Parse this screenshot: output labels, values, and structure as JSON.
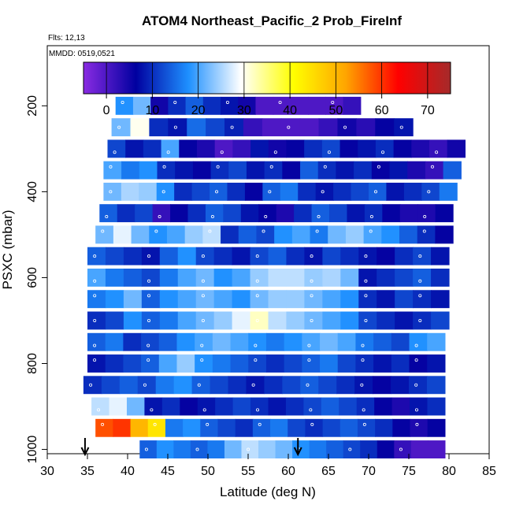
{
  "chart_data": {
    "type": "heatmap",
    "title": "ATOM4 Northeast_Pacific_2 Prob_FireInf",
    "flights_label": "Flts: 12,13",
    "dates_label": "MMDD: 0519,0521",
    "xlabel": "Latitude (deg N)",
    "ylabel": "PSXC (mbar)",
    "xlim": [
      30,
      85
    ],
    "ylim": [
      1010,
      60
    ],
    "y_reversed": true,
    "grid": false,
    "x_ticks": [
      "30",
      "35",
      "40",
      "45",
      "50",
      "55",
      "60",
      "65",
      "70",
      "75",
      "80",
      "85"
    ],
    "y_ticks": [
      "200",
      "400",
      "600",
      "800",
      "1000"
    ],
    "colorbar": {
      "range": [
        -5,
        75
      ],
      "ticks": [
        "0",
        "10",
        "20",
        "30",
        "40",
        "50",
        "60",
        "70"
      ],
      "colors": [
        "#8a2be2",
        "#0000a0",
        "#1e90ff",
        "#ffffff",
        "#ffff00",
        "#ffa500",
        "#ff0000",
        "#a52a2a"
      ]
    },
    "arrows_at_latitude": [
      34.7,
      61.2
    ],
    "layers": [
      {
        "p": 200,
        "lat": [
          38.5,
          69.0
        ],
        "values": [
          18,
          22,
          5,
          10,
          14,
          10,
          8,
          5,
          0,
          0,
          0,
          0,
          0,
          2
        ]
      },
      {
        "p": 250,
        "lat": [
          38.0,
          75.5
        ],
        "values": [
          22,
          30,
          10,
          8,
          15,
          12,
          9,
          2,
          0,
          0,
          0,
          2,
          5,
          3,
          6,
          8
        ]
      },
      {
        "p": 300,
        "lat": [
          37.5,
          82.0
        ],
        "values": [
          12,
          8,
          10,
          20,
          6,
          4,
          0,
          2,
          8,
          5,
          6,
          10,
          12,
          6,
          8,
          10,
          6,
          4,
          2,
          5
        ]
      },
      {
        "p": 350,
        "lat": [
          37.0,
          81.5
        ],
        "values": [
          20,
          16,
          18,
          10,
          8,
          6,
          10,
          12,
          8,
          10,
          6,
          14,
          10,
          8,
          10,
          6,
          8,
          4,
          2,
          14
        ]
      },
      {
        "p": 400,
        "lat": [
          37.0,
          81.0
        ],
        "values": [
          22,
          25,
          24,
          18,
          10,
          12,
          14,
          10,
          6,
          14,
          16,
          10,
          8,
          10,
          12,
          14,
          8,
          10,
          12,
          16
        ]
      },
      {
        "p": 450,
        "lat": [
          36.5,
          80.5
        ],
        "values": [
          14,
          10,
          12,
          2,
          6,
          10,
          14,
          12,
          8,
          6,
          4,
          10,
          14,
          12,
          8,
          10,
          6,
          4,
          4,
          6
        ]
      },
      {
        "p": 500,
        "lat": [
          36.0,
          80.5
        ],
        "values": [
          22,
          28,
          22,
          18,
          20,
          24,
          26,
          10,
          14,
          12,
          18,
          20,
          16,
          22,
          24,
          20,
          18,
          14,
          10,
          6
        ]
      },
      {
        "p": 550,
        "lat": [
          35.0,
          80.0
        ],
        "values": [
          14,
          12,
          10,
          8,
          14,
          18,
          12,
          10,
          8,
          12,
          14,
          10,
          8,
          12,
          10,
          8,
          6,
          10,
          12,
          8
        ]
      },
      {
        "p": 600,
        "lat": [
          35.0,
          80.0
        ],
        "values": [
          20,
          16,
          14,
          12,
          16,
          20,
          22,
          18,
          20,
          24,
          26,
          26,
          24,
          25,
          22,
          8,
          10,
          12,
          14,
          10
        ]
      },
      {
        "p": 650,
        "lat": [
          35.0,
          80.0
        ],
        "values": [
          16,
          18,
          22,
          14,
          18,
          20,
          22,
          20,
          18,
          22,
          24,
          24,
          22,
          20,
          18,
          10,
          8,
          12,
          10,
          8
        ]
      },
      {
        "p": 700,
        "lat": [
          35.0,
          80.0
        ],
        "values": [
          10,
          12,
          18,
          14,
          16,
          20,
          22,
          24,
          28,
          32,
          26,
          24,
          22,
          20,
          18,
          12,
          10,
          8,
          10,
          12
        ]
      },
      {
        "p": 750,
        "lat": [
          35.0,
          79.5
        ],
        "values": [
          14,
          16,
          10,
          12,
          14,
          18,
          20,
          22,
          20,
          18,
          16,
          18,
          20,
          22,
          20,
          16,
          14,
          12,
          18,
          20
        ]
      },
      {
        "p": 800,
        "lat": [
          35.0,
          79.5
        ],
        "values": [
          8,
          10,
          12,
          14,
          20,
          24,
          18,
          16,
          14,
          12,
          10,
          12,
          14,
          16,
          12,
          10,
          8,
          10,
          6,
          8
        ]
      },
      {
        "p": 850,
        "lat": [
          34.5,
          79.5
        ],
        "values": [
          10,
          12,
          14,
          12,
          16,
          18,
          14,
          12,
          10,
          8,
          10,
          12,
          14,
          12,
          10,
          8,
          6,
          8,
          10,
          12
        ]
      },
      {
        "p": 900,
        "lat": [
          35.5,
          79.5
        ],
        "values": [
          26,
          28,
          22,
          8,
          10,
          6,
          8,
          10,
          12,
          10,
          8,
          10,
          12,
          14,
          12,
          10,
          6,
          4,
          8,
          10
        ]
      },
      {
        "p": 950,
        "lat": [
          36.0,
          79.5
        ],
        "values": [
          58,
          60,
          50,
          44,
          16,
          18,
          14,
          12,
          10,
          14,
          16,
          12,
          10,
          12,
          14,
          12,
          10,
          6,
          4,
          6
        ]
      },
      {
        "p": 1000,
        "lat": [
          41.5,
          79.5
        ],
        "values": [
          14,
          18,
          16,
          14,
          16,
          22,
          26,
          24,
          22,
          18,
          16,
          14,
          12,
          10,
          6,
          2,
          0,
          0
        ]
      }
    ]
  }
}
